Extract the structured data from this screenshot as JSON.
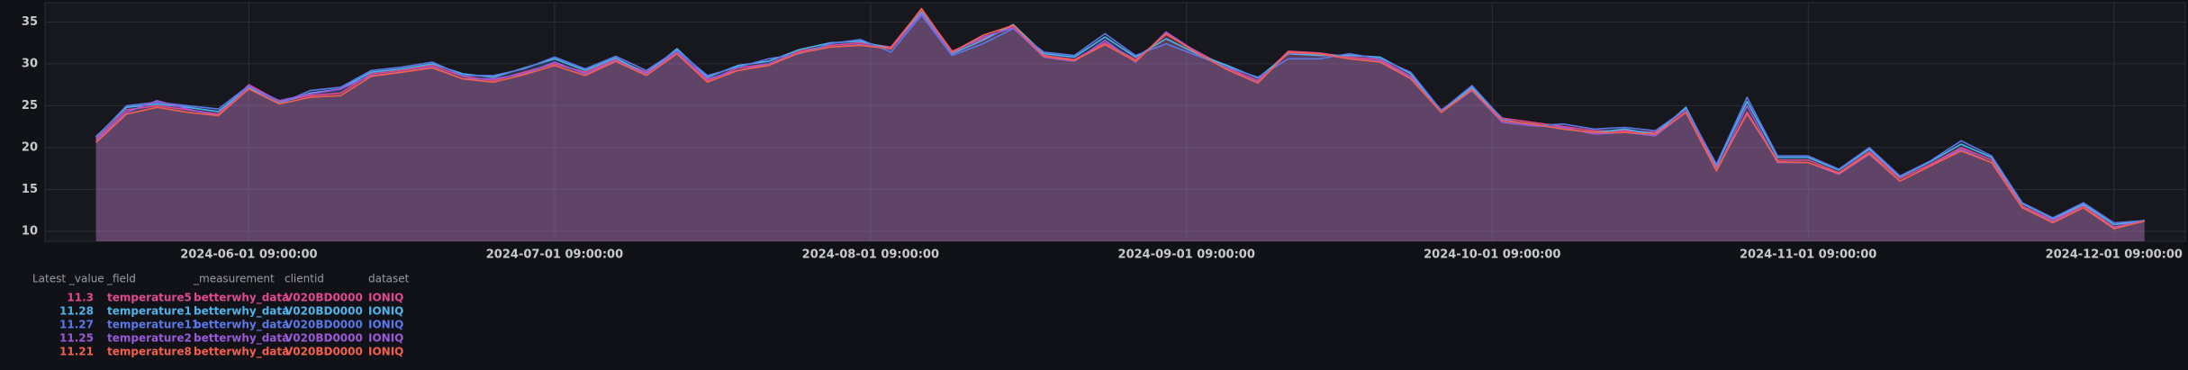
{
  "chart_data": {
    "type": "area",
    "x": [
      "2024-05-17 09:00:00",
      "2024-05-20 09:00:00",
      "2024-05-23 09:00:00",
      "2024-05-26 09:00:00",
      "2024-05-29 09:00:00",
      "2024-06-01 09:00:00",
      "2024-06-04 09:00:00",
      "2024-06-07 09:00:00",
      "2024-06-10 09:00:00",
      "2024-06-13 09:00:00",
      "2024-06-16 09:00:00",
      "2024-06-19 09:00:00",
      "2024-06-22 09:00:00",
      "2024-06-25 09:00:00",
      "2024-06-28 09:00:00",
      "2024-07-01 09:00:00",
      "2024-07-04 09:00:00",
      "2024-07-07 09:00:00",
      "2024-07-10 09:00:00",
      "2024-07-13 09:00:00",
      "2024-07-16 09:00:00",
      "2024-07-19 09:00:00",
      "2024-07-22 09:00:00",
      "2024-07-25 09:00:00",
      "2024-07-28 09:00:00",
      "2024-07-31 09:00:00",
      "2024-08-03 09:00:00",
      "2024-08-06 09:00:00",
      "2024-08-09 09:00:00",
      "2024-08-12 09:00:00",
      "2024-08-15 09:00:00",
      "2024-08-18 09:00:00",
      "2024-08-21 09:00:00",
      "2024-08-24 09:00:00",
      "2024-08-27 09:00:00",
      "2024-08-30 09:00:00",
      "2024-09-02 09:00:00",
      "2024-09-05 09:00:00",
      "2024-09-08 09:00:00",
      "2024-09-11 09:00:00",
      "2024-09-14 09:00:00",
      "2024-09-17 09:00:00",
      "2024-09-20 09:00:00",
      "2024-09-23 09:00:00",
      "2024-09-26 09:00:00",
      "2024-09-29 09:00:00",
      "2024-10-02 09:00:00",
      "2024-10-05 09:00:00",
      "2024-10-08 09:00:00",
      "2024-10-11 09:00:00",
      "2024-10-14 09:00:00",
      "2024-10-17 09:00:00",
      "2024-10-20 09:00:00",
      "2024-10-23 09:00:00",
      "2024-10-26 09:00:00",
      "2024-10-29 09:00:00",
      "2024-11-01 09:00:00",
      "2024-11-04 09:00:00",
      "2024-11-07 09:00:00",
      "2024-11-10 09:00:00",
      "2024-11-13 09:00:00",
      "2024-11-16 09:00:00",
      "2024-11-19 09:00:00",
      "2024-11-22 09:00:00",
      "2024-11-25 09:00:00",
      "2024-11-28 09:00:00",
      "2024-12-01 09:00:00",
      "2024-12-04 09:00:00"
    ],
    "series": [
      {
        "name": "temperature5",
        "measurement": "betterwhy_data",
        "clientid": "V020BD0000",
        "dataset": "IONIQ",
        "color": "#e0488f",
        "values": [
          21,
          24.5,
          25,
          24.5,
          24,
          27.5,
          25.5,
          26.2,
          26.5,
          28.8,
          29.2,
          29.8,
          28.5,
          28,
          29,
          30,
          29,
          30.5,
          29,
          31.5,
          28,
          29.5,
          30,
          31.5,
          32.2,
          32.5,
          32,
          36.5,
          31.5,
          33,
          34.5,
          31,
          30.5,
          32.5,
          30.5,
          33.5,
          31.5,
          29.5,
          28,
          31.5,
          31.3,
          30.8,
          30.5,
          28.5,
          24.5,
          27,
          23.5,
          23,
          22.5,
          22,
          22,
          21.8,
          24.5,
          17.5,
          24,
          18.5,
          18.5,
          17,
          19.5,
          16.3,
          18,
          20,
          18.5,
          13,
          11.3,
          13,
          10.5,
          11.3
        ]
      },
      {
        "name": "temperature1",
        "measurement": "betterwhy_data",
        "clientid": "V020BD0000",
        "dataset": "IONIQ",
        "color": "#4fb3e8",
        "values": [
          21.3,
          24.8,
          25.2,
          24.8,
          24.3,
          27.2,
          25.3,
          26.5,
          27,
          29,
          29.4,
          30,
          28.8,
          28.4,
          29.5,
          30.6,
          29.2,
          30.7,
          28.8,
          31.8,
          28.4,
          29.8,
          30.3,
          31.7,
          32.5,
          32.7,
          31.8,
          36.2,
          31.2,
          32.8,
          34.7,
          31.2,
          30.8,
          33.2,
          30.8,
          33,
          31.2,
          29.8,
          28.3,
          31.2,
          31,
          31,
          30.8,
          28.8,
          24.2,
          27.2,
          23.2,
          22.8,
          22.2,
          21.8,
          22.2,
          21.6,
          24.8,
          17.8,
          25.5,
          18.8,
          18.8,
          17.3,
          19.8,
          16.5,
          18.3,
          20.4,
          18.8,
          13.3,
          11.5,
          13.2,
          10.8,
          11.28
        ]
      },
      {
        "name": "temperature11",
        "measurement": "betterwhy_data",
        "clientid": "V020BD0000",
        "dataset": "IONIQ",
        "color": "#5b78e6",
        "values": [
          21.2,
          25,
          25.4,
          25,
          24.6,
          27.4,
          25.2,
          26.8,
          27.2,
          29.2,
          29.6,
          30.2,
          28.6,
          28.6,
          29.4,
          30.8,
          29.4,
          30.9,
          29.2,
          31.6,
          28.6,
          29.6,
          30.6,
          31.2,
          32.4,
          32.9,
          31.4,
          35.8,
          31,
          32.4,
          34.2,
          31.4,
          31,
          33.6,
          31,
          32.4,
          31,
          29.6,
          28.4,
          30.6,
          30.6,
          31.2,
          30.6,
          29,
          24.4,
          27.4,
          23.4,
          22.6,
          22.8,
          22.2,
          22.4,
          22,
          24.6,
          18,
          26,
          19,
          19,
          17.4,
          20,
          16.6,
          18.4,
          20.8,
          19,
          13.4,
          11.6,
          13.4,
          11,
          11.27
        ]
      },
      {
        "name": "temperature2",
        "measurement": "betterwhy_data",
        "clientid": "V020BD0000",
        "dataset": "IONIQ",
        "color": "#9a5ad8",
        "values": [
          20.8,
          24.2,
          25.6,
          24.6,
          23.8,
          27.3,
          25.6,
          26.4,
          27,
          28.6,
          29,
          29.6,
          28.2,
          28.2,
          28.8,
          30.2,
          28.8,
          30.4,
          28.8,
          31.4,
          28.2,
          29.2,
          30,
          31.3,
          32,
          32.3,
          31.8,
          36,
          31.3,
          33.2,
          34.3,
          30.8,
          30.3,
          32.8,
          30.2,
          33.8,
          31.4,
          29.3,
          27.8,
          31.3,
          31.2,
          30.6,
          30.3,
          28.4,
          24.2,
          26.8,
          23,
          22.6,
          22.4,
          21.6,
          21.8,
          21.4,
          24.2,
          17.2,
          25,
          18.2,
          18.2,
          16.8,
          19.2,
          16,
          17.8,
          19.8,
          18.2,
          12.8,
          11.2,
          12.8,
          10.4,
          11.25
        ]
      },
      {
        "name": "temperature8",
        "measurement": "betterwhy_data",
        "clientid": "V020BD0000",
        "dataset": "IONIQ",
        "color": "#f2604c",
        "values": [
          20.6,
          24,
          24.8,
          24.2,
          23.8,
          27,
          25.2,
          26,
          26.2,
          28.5,
          29,
          29.5,
          28.2,
          27.8,
          28.7,
          29.8,
          28.6,
          30.3,
          28.6,
          31.2,
          27.8,
          29.2,
          29.8,
          31.3,
          32,
          32.2,
          31.8,
          36.6,
          31.4,
          33.4,
          34.6,
          30.9,
          30.4,
          32.3,
          30.3,
          33.6,
          31.3,
          29.3,
          27.7,
          31.4,
          31.2,
          30.6,
          30.2,
          28.2,
          24.2,
          26.9,
          23.2,
          22.8,
          22.2,
          21.8,
          21.8,
          21.6,
          24.2,
          17.2,
          24.2,
          18.3,
          18.2,
          16.9,
          19.3,
          16,
          17.8,
          19.6,
          18.2,
          12.8,
          11,
          12.8,
          10.3,
          11.21
        ]
      }
    ],
    "xlim": [
      "2024-05-12 09:00:00",
      "2024-12-08 09:00:00"
    ],
    "xticks": [
      "2024-06-01 09:00:00",
      "2024-07-01 09:00:00",
      "2024-08-01 09:00:00",
      "2024-09-01 09:00:00",
      "2024-10-01 09:00:00",
      "2024-11-01 09:00:00",
      "2024-12-01 09:00:00"
    ],
    "ylim": [
      8.8,
      37.3
    ],
    "yticks": [
      10,
      15,
      20,
      25,
      30,
      35
    ],
    "grid": true,
    "legend_columns": [
      "Latest _value",
      "_field",
      "_measurement",
      "clientid",
      "dataset"
    ]
  }
}
